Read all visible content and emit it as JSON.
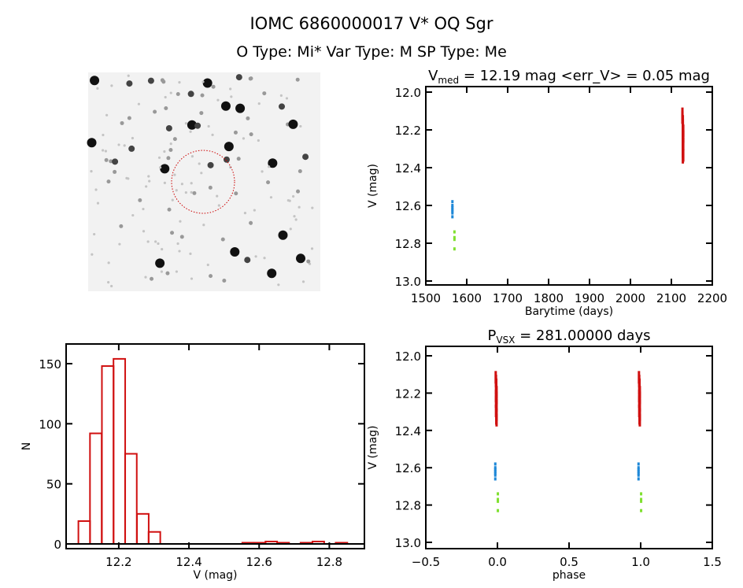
{
  "header": {
    "title": "IOMC 6860000017   V* OQ Sgr",
    "subtitle": "O Type: Mi*  Var Type: M  SP Type: Me"
  },
  "colors": {
    "red": "#d01010",
    "blue": "#1e88d8",
    "green": "#80e030",
    "axis": "#000000"
  },
  "chart_data": [
    {
      "type": "image",
      "panel": "finder-chart",
      "description_marker": "red dashed circle around target"
    },
    {
      "type": "scatter",
      "title_main": "V",
      "title_sub": "med",
      "title_rest": " = 12.19 mag <err_V> = 0.05 mag",
      "xlabel": "Barytime (days)",
      "ylabel": "V (mag)",
      "xlim": [
        1500,
        2200
      ],
      "ylim": [
        13.0,
        12.0
      ],
      "xticks": [
        1500,
        1600,
        1700,
        1800,
        1900,
        2000,
        2100,
        2200
      ],
      "yticks": [
        12.0,
        12.2,
        12.4,
        12.6,
        12.8,
        13.0
      ],
      "series": [
        {
          "color": "blue",
          "x": [
            1565,
            1565,
            1565,
            1565,
            1565,
            1565,
            1565
          ],
          "y": [
            12.58,
            12.6,
            12.61,
            12.62,
            12.63,
            12.64,
            12.66
          ]
        },
        {
          "color": "green",
          "x": [
            1570,
            1570,
            1570,
            1570
          ],
          "y": [
            12.74,
            12.77,
            12.78,
            12.83
          ]
        },
        {
          "color": "red",
          "x": [
            2127,
            2127,
            2128,
            2128,
            2128,
            2129,
            2128,
            2128,
            2129,
            2128,
            2128,
            2129,
            2128,
            2128,
            2129,
            2128
          ],
          "y": [
            12.09,
            12.11,
            12.13,
            12.15,
            12.17,
            12.18,
            12.19,
            12.2,
            12.21,
            12.22,
            12.24,
            12.25,
            12.27,
            12.29,
            12.31,
            12.32
          ]
        }
      ]
    },
    {
      "type": "bar",
      "xlabel": "V (mag)",
      "ylabel": "N",
      "xlim": [
        12.05,
        12.9
      ],
      "ylim": [
        0,
        170
      ],
      "xticks": [
        12.2,
        12.4,
        12.6,
        12.8
      ],
      "yticks": [
        0,
        50,
        100,
        150
      ],
      "bin_width": 0.0333,
      "bin_starts": [
        12.085,
        12.118,
        12.152,
        12.185,
        12.218,
        12.252,
        12.285,
        12.552,
        12.585,
        12.618,
        12.652,
        12.718,
        12.752,
        12.818
      ],
      "values": [
        19,
        92,
        148,
        154,
        75,
        25,
        10,
        1,
        1,
        2,
        1,
        1,
        2,
        1
      ]
    },
    {
      "type": "scatter",
      "title_main": "P",
      "title_sub": "VSX",
      "title_rest": " = 281.00000 days",
      "xlabel": "phase",
      "ylabel": "V (mag)",
      "xlim": [
        -0.5,
        1.5
      ],
      "ylim": [
        13.0,
        12.0
      ],
      "xticks": [
        -0.5,
        0.0,
        0.5,
        1.0,
        1.5
      ],
      "xticklabels": [
        "−0.5",
        "0.0",
        "0.5",
        "1.0",
        "1.5"
      ],
      "yticks": [
        12.0,
        12.2,
        12.4,
        12.6,
        12.8,
        13.0
      ],
      "period_days": 281.0,
      "series": [
        {
          "color": "blue",
          "phase": [
            -0.015,
            -0.015,
            -0.015,
            -0.015,
            -0.015,
            -0.015,
            -0.015
          ],
          "y": [
            12.58,
            12.6,
            12.61,
            12.62,
            12.63,
            12.64,
            12.66
          ]
        },
        {
          "color": "green",
          "phase": [
            0.003,
            0.003,
            0.003,
            0.003
          ],
          "y": [
            12.74,
            12.77,
            12.78,
            12.83
          ]
        },
        {
          "color": "red",
          "phase": [
            -0.012,
            -0.01,
            -0.008,
            -0.01,
            -0.006,
            -0.008,
            -0.01,
            -0.006,
            -0.008,
            -0.01,
            -0.006,
            -0.008,
            -0.01,
            -0.006,
            -0.008,
            -0.006
          ],
          "y": [
            12.09,
            12.11,
            12.13,
            12.15,
            12.17,
            12.18,
            12.19,
            12.2,
            12.21,
            12.22,
            12.24,
            12.25,
            12.27,
            12.29,
            12.31,
            12.32
          ]
        }
      ]
    }
  ]
}
